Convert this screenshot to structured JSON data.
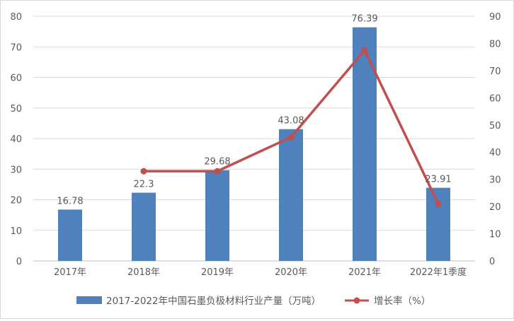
{
  "chart_data": {
    "type": "bar",
    "categories": [
      "2017年",
      "2018年",
      "2019年",
      "2020年",
      "2021年",
      "2022年1季度"
    ],
    "series": [
      {
        "name": "2017-2022年中国石墨负极材料行业产量（万吨）",
        "type": "bar",
        "axis": "left",
        "color": "#4f81bd",
        "values": [
          16.78,
          22.3,
          29.68,
          43.08,
          76.39,
          23.91
        ],
        "data_labels": [
          "16.78",
          "22.3",
          "29.68",
          "43.08",
          "76.39",
          "23.91"
        ]
      },
      {
        "name": "增长率（%）",
        "type": "line",
        "axis": "right",
        "color": "#c0504d",
        "values": [
          null,
          33,
          33,
          45.5,
          77.5,
          21
        ]
      }
    ],
    "y_left": {
      "min": 0,
      "max": 80,
      "step": 10,
      "ticks": [
        "0",
        "10",
        "20",
        "30",
        "40",
        "50",
        "60",
        "70",
        "80"
      ]
    },
    "y_right": {
      "min": 0,
      "max": 90,
      "step": 10,
      "ticks": [
        "0",
        "10",
        "20",
        "30",
        "40",
        "50",
        "60",
        "70",
        "80",
        "90"
      ]
    },
    "grid": true,
    "legend_position": "bottom",
    "title": "",
    "xlabel": "",
    "ylabel": ""
  }
}
